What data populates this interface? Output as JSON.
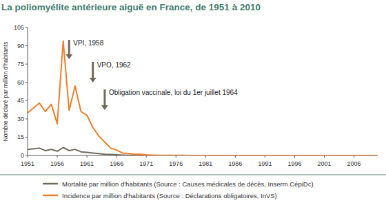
{
  "chart_data": {
    "type": "line",
    "title": "La poliomyélite antérieure aiguë en France, de 1951 à 2010",
    "y_label": "Nombre déclaré par million d'habitants",
    "x": [
      1951,
      1952,
      1953,
      1954,
      1955,
      1956,
      1957,
      1958,
      1959,
      1960,
      1961,
      1962,
      1963,
      1964,
      1965,
      1966,
      1967,
      1968,
      1969,
      1970,
      1971,
      1972,
      1973,
      1974,
      1975,
      1976,
      1977,
      1978,
      1979,
      1980,
      1981,
      1982,
      1983,
      1984,
      1985,
      1986,
      1987,
      1988,
      1989,
      1990,
      1991,
      1992,
      1993,
      1994,
      1995,
      1996,
      1997,
      1998,
      1999,
      2000,
      2001,
      2002,
      2003,
      2004,
      2005,
      2006,
      2007,
      2008,
      2009,
      2010
    ],
    "series": [
      {
        "name": "Mortalité par million d'habitants (Source : Causes médicales de décès, Inserm CépiDc)",
        "color": "#6e6a5c",
        "values": [
          5,
          5.5,
          6,
          4,
          5,
          3.5,
          6.5,
          4,
          5,
          3,
          2.5,
          2,
          1.5,
          1,
          0.8,
          0.5,
          0.3,
          0.2,
          0.1,
          0.1,
          0,
          0,
          0,
          0,
          0,
          0,
          0,
          0,
          0,
          0,
          0,
          0,
          0,
          0,
          0,
          0,
          0,
          0,
          0,
          0,
          0,
          0,
          0,
          0,
          0,
          0,
          0,
          0,
          0,
          0,
          0,
          0,
          0,
          0,
          0,
          0,
          0,
          0,
          0,
          0
        ]
      },
      {
        "name": "Incidence par million d'habitants (Source : Déclarations obligatoires, InVS)",
        "color": "#f07d2a",
        "values": [
          35,
          39,
          43,
          36,
          42,
          26,
          94,
          37,
          57,
          36,
          33,
          23,
          16,
          11,
          6,
          4.5,
          2,
          1.5,
          1,
          1,
          0.5,
          0.3,
          0.2,
          0.2,
          0.1,
          0.1,
          0.1,
          0,
          0,
          0,
          0,
          0,
          0,
          0,
          0,
          0,
          0,
          0,
          0,
          0,
          0,
          0,
          0,
          0,
          0,
          0,
          0,
          0,
          0,
          0,
          0,
          0,
          0,
          0,
          0,
          0,
          0,
          0,
          0,
          0
        ]
      }
    ],
    "annotations": [
      {
        "text": "VPI, 1958",
        "x": 1958
      },
      {
        "text": "VPO, 1962",
        "x": 1962
      },
      {
        "text": "Obligation vaccinale, loi du 1er juillet 1964",
        "x": 1964
      }
    ],
    "xlim": [
      1951,
      2010
    ],
    "xticks": [
      1951,
      1956,
      1961,
      1966,
      1971,
      1976,
      1981,
      1986,
      1991,
      1996,
      2001,
      2006
    ],
    "ylim": [
      0,
      105
    ],
    "yticks": [
      0,
      15,
      30,
      45,
      60,
      75,
      90,
      105
    ],
    "grid": false,
    "legend": "bottom"
  }
}
